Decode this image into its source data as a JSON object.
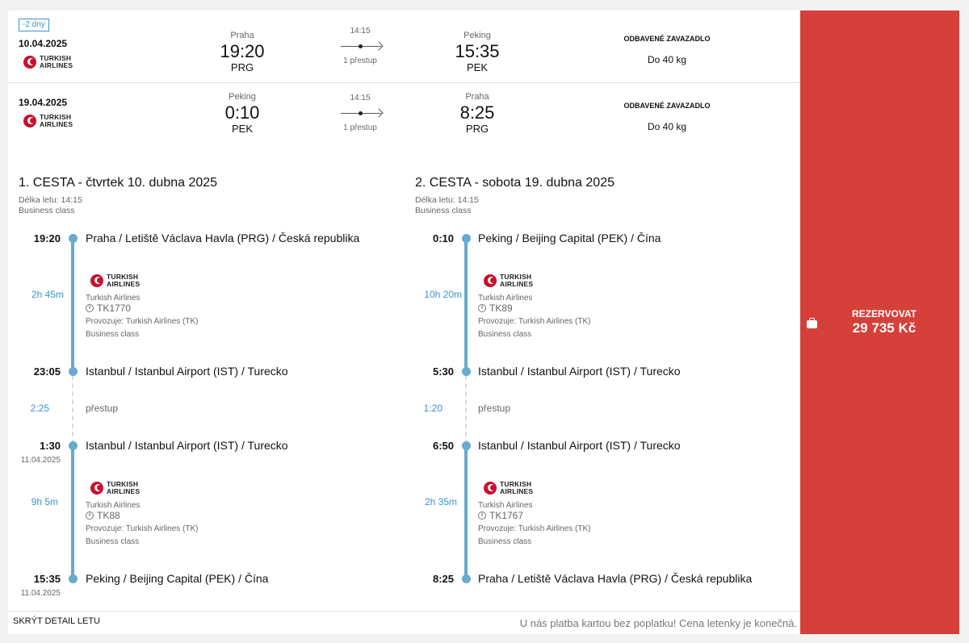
{
  "summary": {
    "badge": "-2 dny",
    "rows": [
      {
        "date": "10.04.2025",
        "airline_logo": "TURKISH AIRLINES",
        "from_city": "Praha",
        "from_time": "19:20",
        "from_code": "PRG",
        "duration": "14:15",
        "stops": "1 přestup",
        "to_city": "Peking",
        "to_time": "15:35",
        "to_code": "PEK",
        "luggage_label": "ODBAVENÉ ZAVAZADLO",
        "luggage_value": "Do 40 kg"
      },
      {
        "date": "19.04.2025",
        "airline_logo": "TURKISH AIRLINES",
        "from_city": "Peking",
        "from_time": "0:10",
        "from_code": "PEK",
        "duration": "14:15",
        "stops": "1 přestup",
        "to_city": "Praha",
        "to_time": "8:25",
        "to_code": "PRG",
        "luggage_label": "ODBAVENÉ ZAVAZADLO",
        "luggage_value": "Do 40 kg"
      }
    ]
  },
  "legs": [
    {
      "title": "1. CESTA - čtvrtek 10. dubna 2025",
      "length": "Délka letu: 14:15",
      "class": "Business class",
      "dep_time": "19:20",
      "dep_place": "Praha / Letiště Václava Havla (PRG) / Česká republika",
      "seg1": {
        "duration": "2h 45m",
        "logo": "TURKISH AIRLINES",
        "airline": "Turkish Airlines",
        "flight": "TK1770",
        "operated": "Provozuje: Turkish Airlines (TK)",
        "class": "Business class"
      },
      "arr1_time": "23:05",
      "arr1_place": "Istanbul / Istanbul Airport (IST) / Turecko",
      "transfer_dur": "2:25",
      "transfer_label": "přestup",
      "dep2_time": "1:30",
      "dep2_date": "11.04.2025",
      "dep2_place": "Istanbul / Istanbul Airport (IST) / Turecko",
      "seg2": {
        "duration": "9h 5m",
        "logo": "TURKISH AIRLINES",
        "airline": "Turkish Airlines",
        "flight": "TK88",
        "operated": "Provozuje: Turkish Airlines (TK)",
        "class": "Business class"
      },
      "arr2_time": "15:35",
      "arr2_date": "11.04.2025",
      "arr2_place": "Peking / Beijing Capital (PEK) / Čína"
    },
    {
      "title": "2. CESTA - sobota 19. dubna 2025",
      "length": "Délka letu: 14:15",
      "class": "Business class",
      "dep_time": "0:10",
      "dep_place": "Peking / Beijing Capital (PEK) / Čína",
      "seg1": {
        "duration": "10h 20m",
        "logo": "TURKISH AIRLINES",
        "airline": "Turkish Airlines",
        "flight": "TK89",
        "operated": "Provozuje: Turkish Airlines (TK)",
        "class": "Business class"
      },
      "arr1_time": "5:30",
      "arr1_place": "Istanbul / Istanbul Airport (IST) / Turecko",
      "transfer_dur": "1:20",
      "transfer_label": "přestup",
      "dep2_time": "6:50",
      "dep2_date": "",
      "dep2_place": "Istanbul / Istanbul Airport (IST) / Turecko",
      "seg2": {
        "duration": "2h 35m",
        "logo": "TURKISH AIRLINES",
        "airline": "Turkish Airlines",
        "flight": "TK1767",
        "operated": "Provozuje: Turkish Airlines (TK)",
        "class": "Business class"
      },
      "arr2_time": "8:25",
      "arr2_date": "",
      "arr2_place": "Praha / Letiště Václava Havla (PRG) / Česká republika"
    }
  ],
  "footer": {
    "hide_detail": "SKRÝT DETAIL LETU",
    "note": "U nás platba kartou bez poplatku! Cena letenky je konečná."
  },
  "cta": {
    "label": "REZERVOVAT",
    "price": "29 735 Kč",
    "icon": "briefcase-icon",
    "color": "#d6403a"
  }
}
